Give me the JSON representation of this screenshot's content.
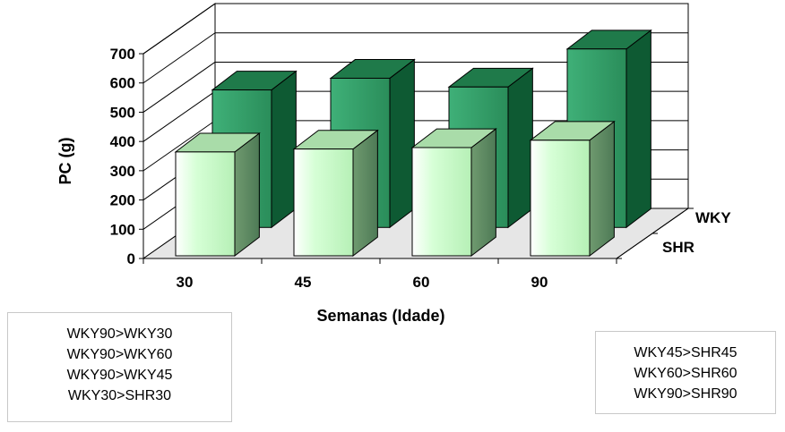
{
  "chart_data": {
    "type": "bar",
    "subtype": "3d-clustered-depth",
    "title": "",
    "xlabel": "Semanas (Idade)",
    "ylabel": "PC (g)",
    "categories": [
      "30",
      "45",
      "60",
      "90"
    ],
    "ylim": [
      0,
      700
    ],
    "yticks": [
      "0",
      "100",
      "200",
      "300",
      "400",
      "500",
      "600",
      "700"
    ],
    "series": [
      {
        "name": "SHR",
        "color": "#c8ffc8",
        "values": [
          355,
          365,
          370,
          395
        ]
      },
      {
        "name": "WKY",
        "color": "#2e9a63",
        "values": [
          470,
          510,
          480,
          610
        ]
      }
    ],
    "grid": true,
    "depth_labels_placement": "right"
  },
  "notes": {
    "left": [
      "WKY90>WKY30",
      "WKY90>WKY60",
      "WKY90>WKY45",
      "WKY30>SHR30"
    ],
    "right": [
      "WKY45>SHR45",
      "WKY60>SHR60",
      "WKY90>SHR90"
    ]
  }
}
